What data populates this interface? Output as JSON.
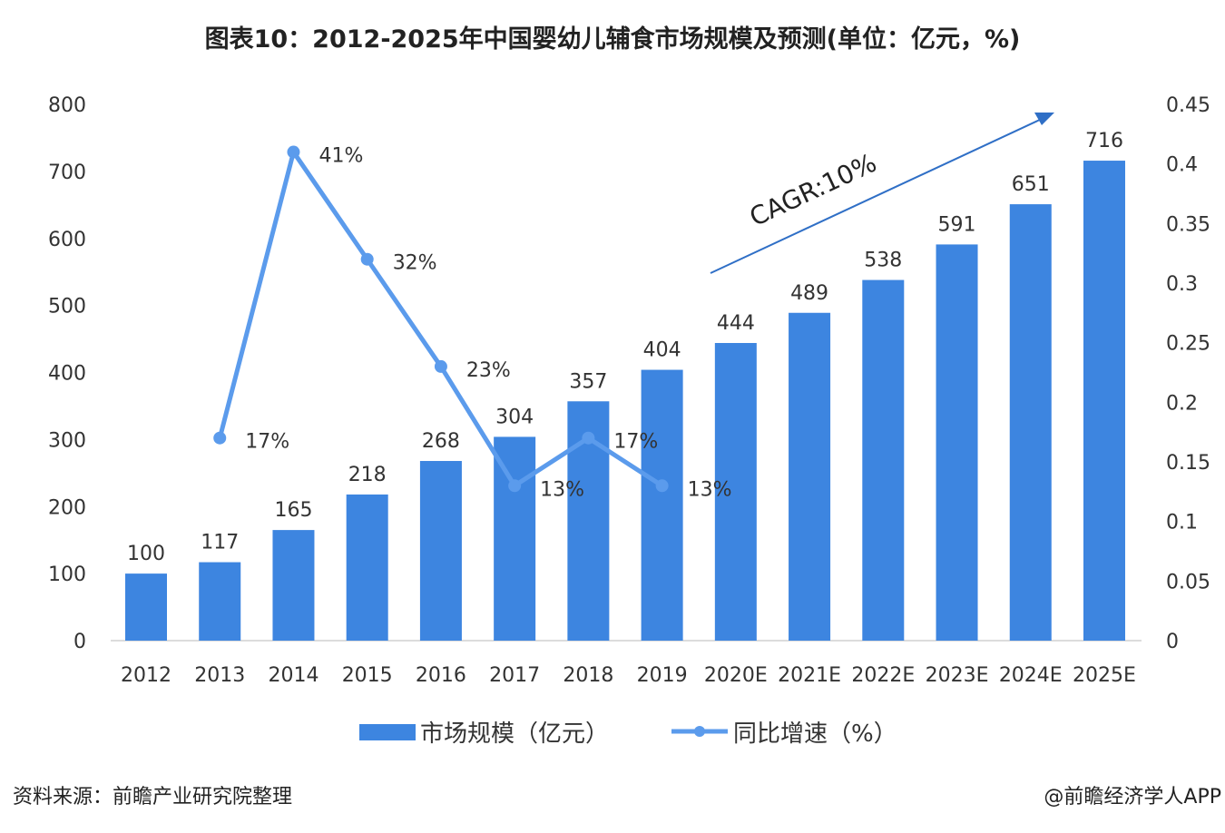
{
  "chart_data": {
    "type": "bar+line",
    "title": "图表10：2012-2025年中国婴幼儿辅食市场规模及预测(单位：亿元，%)",
    "categories": [
      "2012",
      "2013",
      "2014",
      "2015",
      "2016",
      "2017",
      "2018",
      "2019",
      "2020E",
      "2021E",
      "2022E",
      "2023E",
      "2024E",
      "2025E"
    ],
    "series": [
      {
        "name": "市场规模（亿元）",
        "type": "bar",
        "axis": "left",
        "color": "#3d85e0",
        "values": [
          100,
          117,
          165,
          218,
          268,
          304,
          357,
          404,
          444,
          489,
          538,
          591,
          651,
          716
        ],
        "labels": [
          "100",
          "117",
          "165",
          "218",
          "268",
          "304",
          "357",
          "404",
          "444",
          "489",
          "538",
          "591",
          "651",
          "716"
        ]
      },
      {
        "name": "同比增速（%）",
        "type": "line",
        "axis": "right",
        "color": "#5b9bec",
        "values": [
          null,
          0.17,
          0.41,
          0.32,
          0.23,
          0.13,
          0.17,
          0.13,
          null,
          null,
          null,
          null,
          null,
          null
        ],
        "labels": [
          null,
          "17%",
          "41%",
          "32%",
          "23%",
          "13%",
          "17%",
          "13%",
          null,
          null,
          null,
          null,
          null,
          null
        ]
      }
    ],
    "y_left": {
      "range": [
        0,
        800
      ],
      "ticks": [
        "0",
        "100",
        "200",
        "300",
        "400",
        "500",
        "600",
        "700",
        "800"
      ]
    },
    "y_right": {
      "range": [
        0,
        0.45
      ],
      "ticks": [
        "0",
        "0.05",
        "0.1",
        "0.15",
        "0.2",
        "0.25",
        "0.3",
        "0.35",
        "0.4",
        "0.45"
      ]
    },
    "annotation": {
      "text": "CAGR:10%",
      "arrow_color": "#2f6fc6"
    },
    "legend": "bottom",
    "grid": false
  },
  "footer": {
    "source": "资料来源：前瞻产业研究院整理",
    "credit": "@前瞻经济学人APP"
  }
}
